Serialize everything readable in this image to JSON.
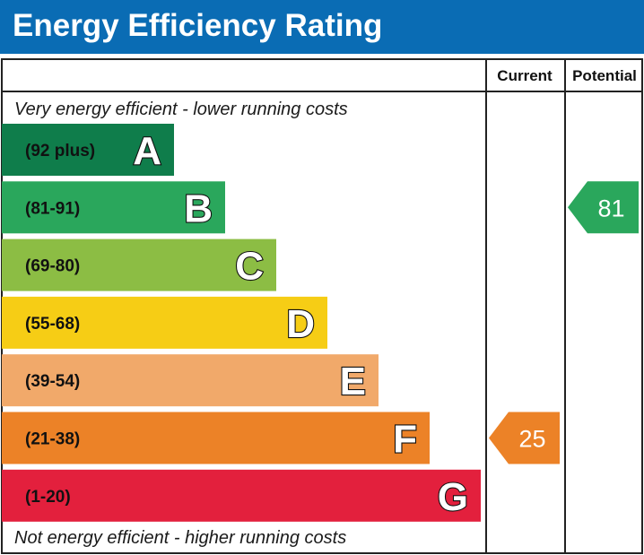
{
  "header": {
    "title": "Energy Efficiency Rating"
  },
  "chart_data": {
    "type": "bar",
    "title": "Energy Efficiency Rating",
    "columns": [
      "Current",
      "Potential"
    ],
    "top_note": "Very energy efficient - lower running costs",
    "bottom_note": "Not energy efficient - higher running costs",
    "bands": [
      {
        "letter": "A",
        "range": "(92 plus)",
        "color": "#0f7d4b"
      },
      {
        "letter": "B",
        "range": "(81-91)",
        "color": "#2aa75c"
      },
      {
        "letter": "C",
        "range": "(69-80)",
        "color": "#8cbd44"
      },
      {
        "letter": "D",
        "range": "(55-68)",
        "color": "#f6cd15"
      },
      {
        "letter": "E",
        "range": "(39-54)",
        "color": "#f1a96a"
      },
      {
        "letter": "F",
        "range": "(21-38)",
        "color": "#ec8227"
      },
      {
        "letter": "G",
        "range": "(1-20)",
        "color": "#e3203d"
      }
    ],
    "current": {
      "value": 25,
      "band": "F",
      "color": "#ec8227"
    },
    "potential": {
      "value": 81,
      "band": "B",
      "color": "#2aa75c"
    }
  }
}
